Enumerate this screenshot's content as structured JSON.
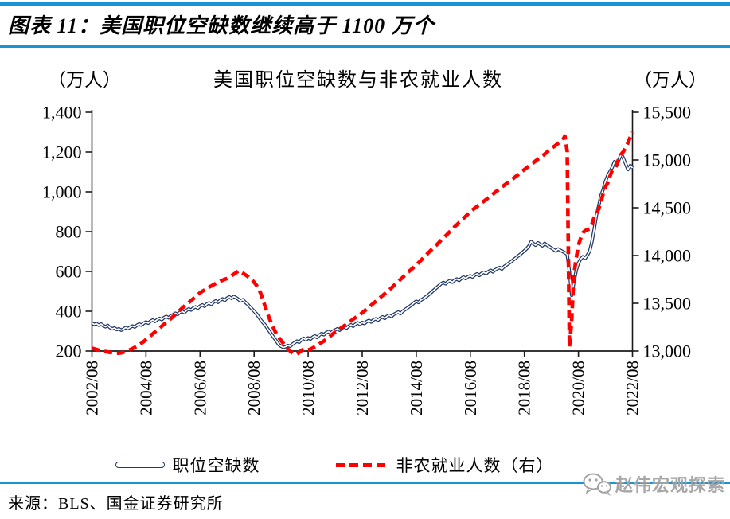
{
  "header": {
    "title": "图表 11：美国职位空缺数继续高于 1100 万个"
  },
  "footer": {
    "source": "来源：BLS、国金证券研究所",
    "watermark": "赵伟宏观探索"
  },
  "colors": {
    "accent_blue": "#1794d1",
    "line_navy": "#203864",
    "line_red": "#ff0000",
    "axis_black": "#1a1a1a",
    "watermark_gray": "#a3a3a3"
  },
  "icons": {
    "watermark_icon": "chat-bubbles-icon"
  },
  "chart_data": {
    "type": "line",
    "title": "美国职位空缺数与非农就业人数",
    "grid": false,
    "legend_position": "bottom",
    "left_axis": {
      "unit": "（万人）",
      "min": 200,
      "max": 1400,
      "tick_values": [
        1400,
        1200,
        1000,
        800,
        600,
        400,
        200
      ],
      "tick_labels": [
        "1,400",
        "1,200",
        "1,000",
        "800",
        "600",
        "400",
        "200"
      ]
    },
    "right_axis": {
      "unit": "（万人）",
      "min": 13000,
      "max": 15500,
      "tick_values": [
        15500,
        15000,
        14500,
        14000,
        13500,
        13000
      ],
      "tick_labels": [
        "15,500",
        "15,000",
        "14,500",
        "14,000",
        "13,500",
        "13,000"
      ]
    },
    "x_axis": {
      "start": "2002/08",
      "end": "2022/08",
      "interval": "monthly",
      "tick_labels": [
        "2002/08",
        "2004/08",
        "2006/08",
        "2008/08",
        "2010/08",
        "2012/08",
        "2014/08",
        "2016/08",
        "2018/08",
        "2020/08",
        "2022/08"
      ]
    },
    "series": [
      {
        "name": "职位空缺数",
        "axis": "left",
        "line_style": "double-solid",
        "color": "#203864",
        "values": [
          340,
          334,
          338,
          330,
          336,
          328,
          322,
          329,
          318,
          312,
          316,
          308,
          312,
          305,
          311,
          318,
          313,
          320,
          326,
          321,
          330,
          336,
          330,
          340,
          346,
          340,
          350,
          356,
          349,
          358,
          364,
          358,
          368,
          374,
          367,
          376,
          382,
          390,
          384,
          394,
          400,
          393,
          404,
          412,
          406,
          416,
          422,
          415,
          426,
          432,
          425,
          436,
          442,
          435,
          446,
          452,
          445,
          456,
          462,
          455,
          466,
          472,
          465,
          474,
          468,
          460,
          452,
          458,
          446,
          436,
          424,
          412,
          400,
          388,
          372,
          356,
          342,
          330,
          312,
          296,
          280,
          264,
          248,
          232,
          224,
          218,
          222,
          228,
          224,
          234,
          242,
          250,
          244,
          256,
          264,
          256,
          266,
          260,
          270,
          276,
          268,
          280,
          288,
          282,
          292,
          298,
          290,
          300,
          306,
          312,
          305,
          315,
          322,
          315,
          325,
          332,
          325,
          335,
          342,
          334,
          344,
          338,
          348,
          354,
          346,
          356,
          362,
          355,
          365,
          372,
          364,
          374,
          380,
          374,
          384,
          390,
          396,
          388,
          400,
          408,
          416,
          424,
          432,
          442,
          450,
          444,
          456,
          462,
          470,
          478,
          488,
          498,
          508,
          518,
          528,
          538,
          545,
          538,
          548,
          554,
          546,
          556,
          562,
          555,
          565,
          572,
          564,
          574,
          578,
          572,
          582,
          588,
          580,
          590,
          596,
          589,
          599,
          606,
          598,
          608,
          614,
          620,
          612,
          624,
          632,
          640,
          648,
          658,
          666,
          676,
          684,
          694,
          704,
          714,
          728,
          750,
          740,
          732,
          744,
          736,
          729,
          741,
          733,
          725,
          718,
          710,
          703,
          713,
          706,
          700,
          694,
          686,
          600,
          480,
          545,
          605,
          642,
          662,
          674,
          666,
          682,
          702,
          750,
          812,
          882,
          930,
          982,
          1012,
          1052,
          1082,
          1102,
          1122,
          1152,
          1132,
          1162,
          1190,
          1168,
          1140,
          1112,
          1132,
          1120
        ]
      },
      {
        "name": "非农就业人数（右）",
        "axis": "right",
        "line_style": "dashed",
        "color": "#ff0000",
        "values": [
          13030,
          13023,
          13016,
          13010,
          13004,
          12999,
          12994,
          12990,
          12986,
          12982,
          12979,
          12977,
          12978,
          12982,
          12988,
          12996,
          13005,
          13015,
          13026,
          13038,
          13051,
          13065,
          13082,
          13100,
          13120,
          13140,
          13160,
          13180,
          13200,
          13220,
          13240,
          13260,
          13280,
          13300,
          13320,
          13340,
          13360,
          13382,
          13404,
          13426,
          13448,
          13468,
          13488,
          13508,
          13528,
          13548,
          13568,
          13590,
          13610,
          13625,
          13640,
          13654,
          13668,
          13682,
          13695,
          13708,
          13720,
          13732,
          13742,
          13752,
          13760,
          13775,
          13790,
          13805,
          13820,
          13840,
          13830,
          13815,
          13800,
          13785,
          13765,
          13745,
          13720,
          13690,
          13650,
          13600,
          13530,
          13460,
          13390,
          13330,
          13270,
          13220,
          13175,
          13140,
          13110,
          13080,
          13050,
          13020,
          13000,
          12980,
          12965,
          12970,
          12985,
          13005,
          13020,
          13010,
          13010,
          13020,
          13032,
          13046,
          13060,
          13075,
          13090,
          13105,
          13122,
          13140,
          13160,
          13180,
          13200,
          13216,
          13232,
          13248,
          13264,
          13280,
          13298,
          13316,
          13334,
          13350,
          13366,
          13382,
          13400,
          13420,
          13440,
          13460,
          13480,
          13500,
          13520,
          13540,
          13560,
          13580,
          13600,
          13620,
          13640,
          13662,
          13684,
          13706,
          13728,
          13750,
          13772,
          13794,
          13816,
          13838,
          13858,
          13880,
          13900,
          13924,
          13948,
          13972,
          13996,
          14020,
          14044,
          14066,
          14088,
          14110,
          14134,
          14158,
          14180,
          14204,
          14228,
          14252,
          14276,
          14300,
          14322,
          14344,
          14366,
          14388,
          14412,
          14436,
          14460,
          14478,
          14496,
          14514,
          14532,
          14550,
          14568,
          14586,
          14604,
          14622,
          14642,
          14662,
          14680,
          14698,
          14716,
          14734,
          14752,
          14770,
          14788,
          14806,
          14824,
          14842,
          14862,
          14882,
          14900,
          14918,
          14936,
          14954,
          14972,
          14990,
          15008,
          15026,
          15044,
          15062,
          15082,
          15102,
          15120,
          15138,
          15156,
          15174,
          15192,
          15210,
          15250,
          15090,
          13040,
          13320,
          13800,
          13970,
          14110,
          14180,
          14240,
          14260,
          14270,
          14280,
          14330,
          14400,
          14430,
          14490,
          14560,
          14650,
          14720,
          14760,
          14830,
          14890,
          14900,
          14950,
          15020,
          15060,
          15090,
          15130,
          15180,
          15240,
          15290
        ]
      }
    ]
  }
}
